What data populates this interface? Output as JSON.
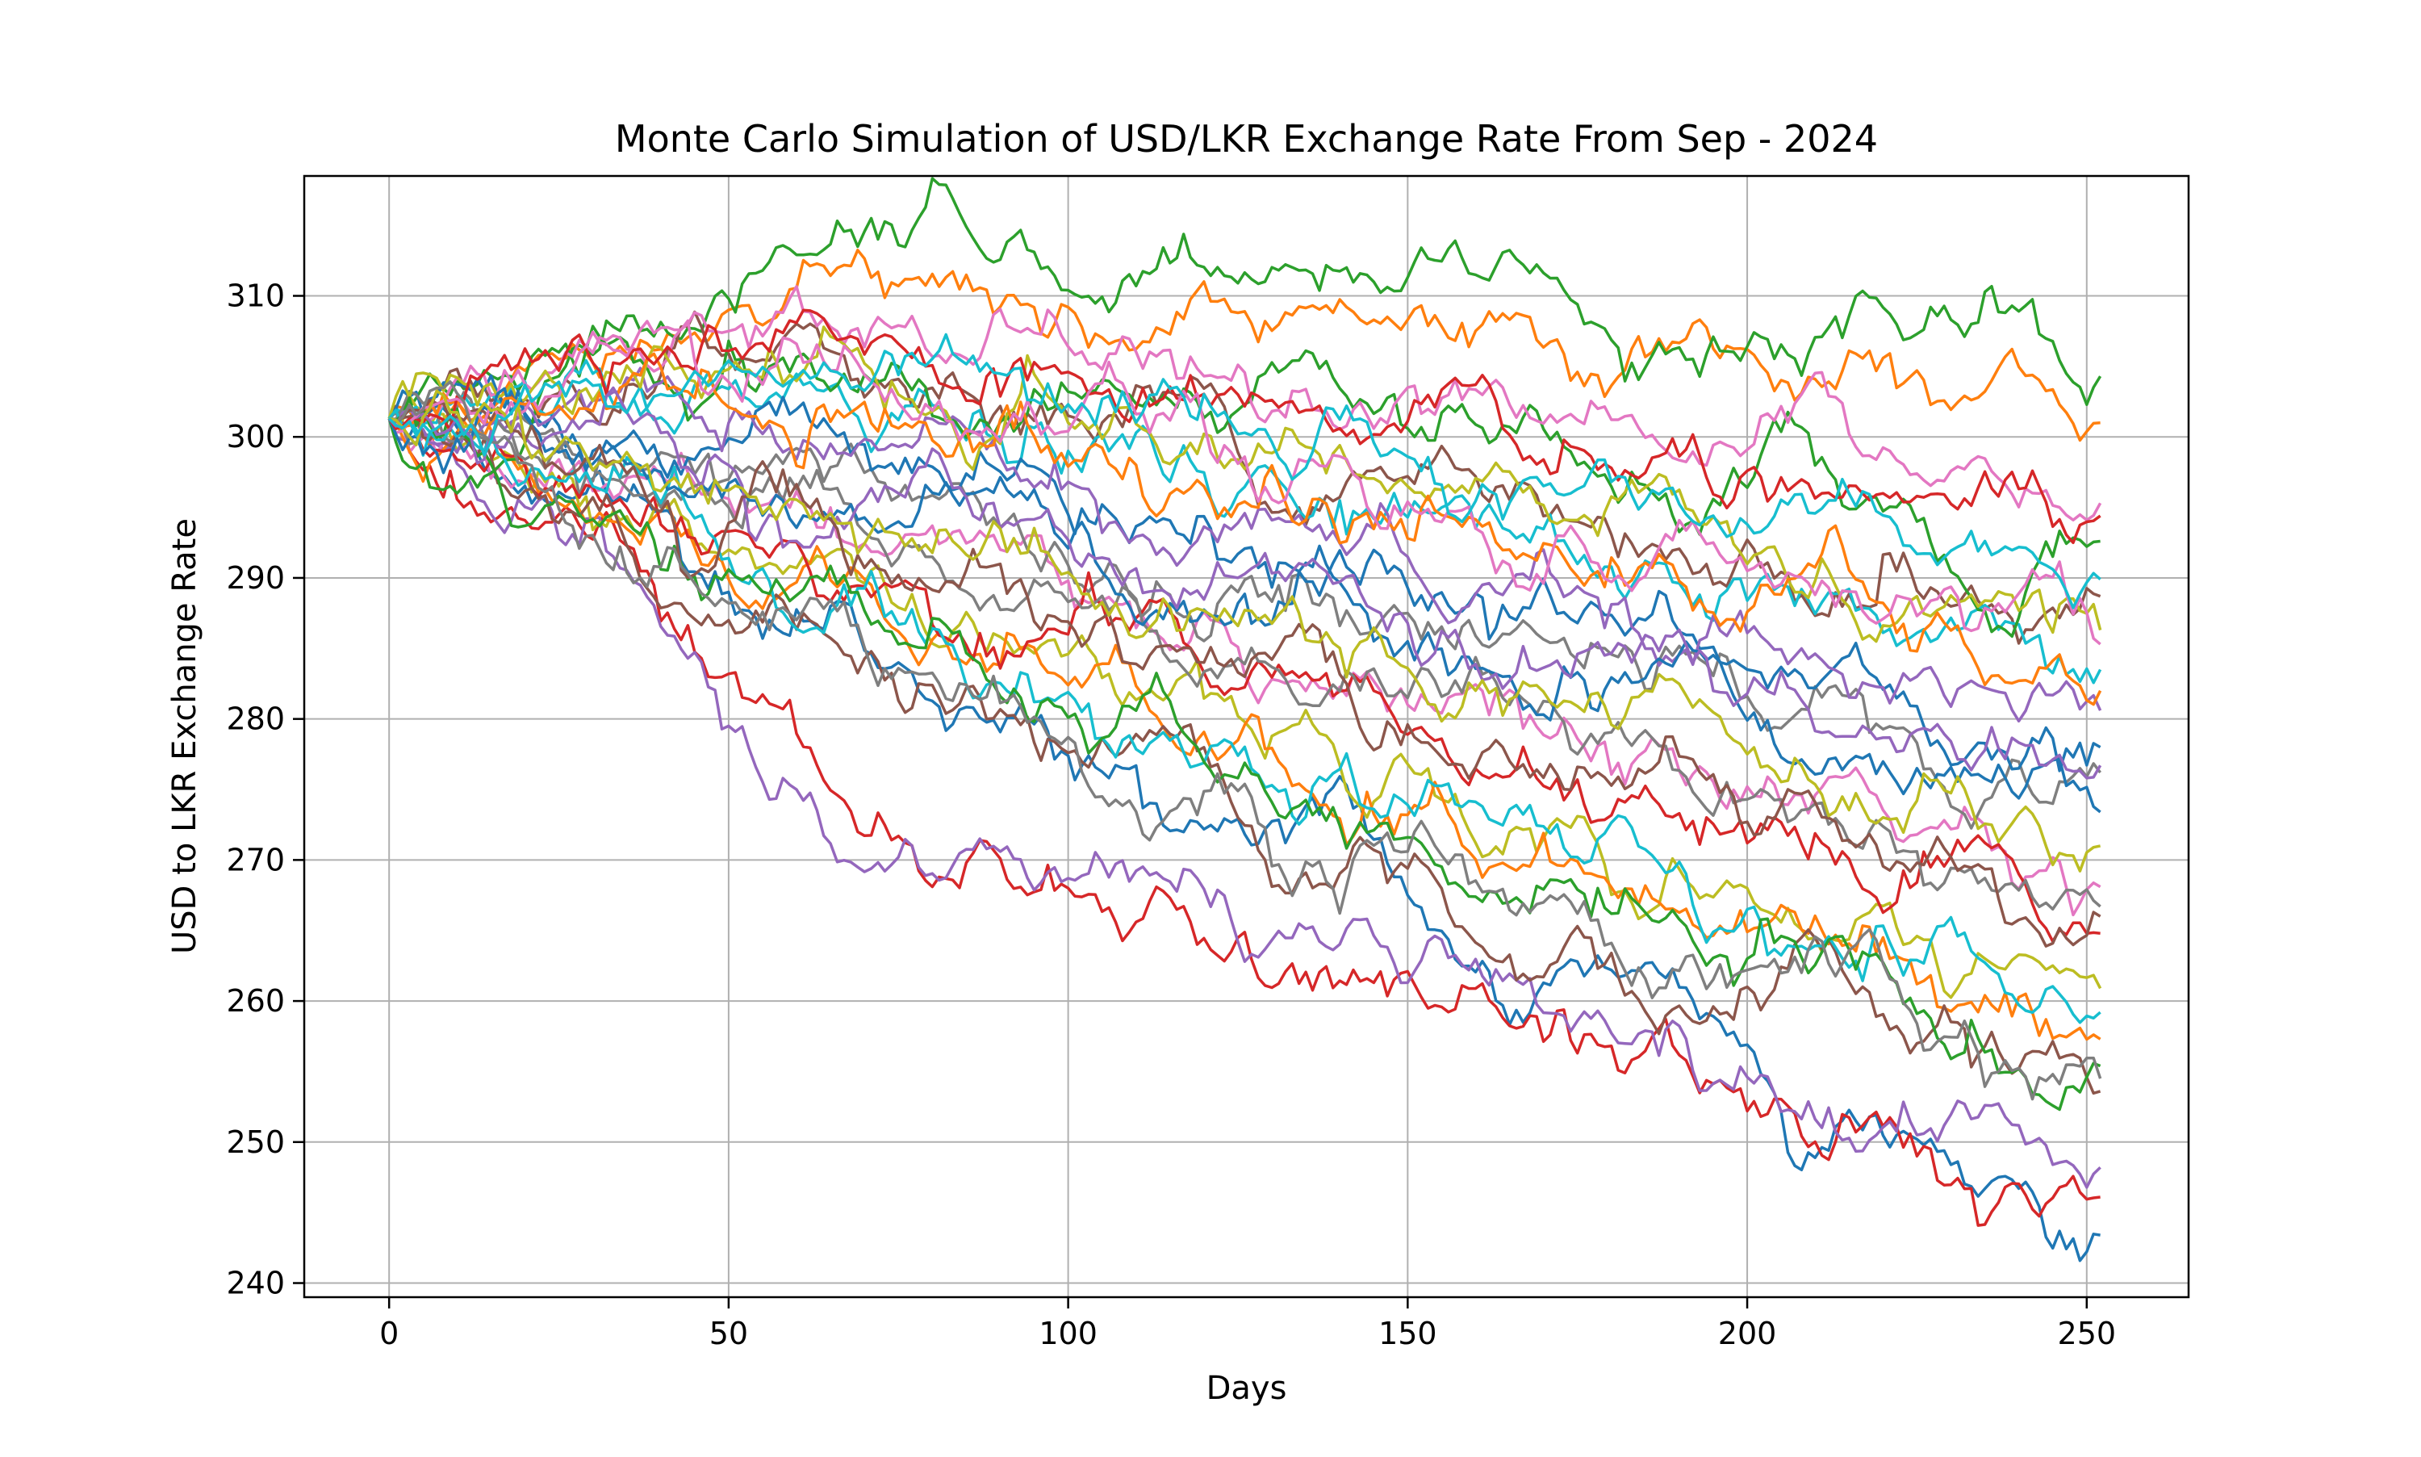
{
  "chart_data": {
    "type": "line",
    "title": "Monte Carlo Simulation of USD/LKR Exchange Rate From Sep - 2024",
    "xlabel": "Days",
    "ylabel": "USD to LKR Exchange Rate",
    "xlim": [
      -12.5,
      265
    ],
    "ylim": [
      239,
      318.5
    ],
    "xticks": [
      0,
      50,
      100,
      150,
      200,
      250
    ],
    "yticks": [
      240,
      250,
      260,
      270,
      280,
      290,
      300,
      310
    ],
    "grid": true,
    "legend": "none",
    "start_value": 301.3,
    "num_days": 252,
    "colors": [
      "#1f77b4",
      "#ff7f0e",
      "#2ca02c",
      "#d62728",
      "#9467bd",
      "#8c564b",
      "#e377c2",
      "#7f7f7f",
      "#bcbd22",
      "#17becf"
    ],
    "series_note": "",
    "series": [
      {
        "x": [
          0,
          25,
          50,
          75,
          100,
          125,
          150,
          175,
          200,
          225,
          252
        ],
        "y": [
          301.3,
          296.1,
          289.0,
          284.0,
          277.4,
          272.9,
          267.5,
          262.8,
          256.9,
          250.2,
          243.4
        ]
      },
      {
        "x": [
          0,
          25,
          50,
          75,
          100,
          125,
          150,
          175,
          200,
          225,
          252
        ],
        "y": [
          301.3,
          305.5,
          309.0,
          310.7,
          309.2,
          308.8,
          308.3,
          304.6,
          306.2,
          304.7,
          301.0
        ]
      },
      {
        "x": [
          0,
          25,
          50,
          75,
          100,
          125,
          150,
          175,
          200,
          225,
          252
        ],
        "y": [
          301.3,
          306.0,
          309.8,
          313.6,
          310.4,
          310.9,
          311.3,
          309.4,
          306.4,
          307.3,
          304.3
        ]
      },
      {
        "x": [
          0,
          25,
          50,
          75,
          100,
          125,
          150,
          175,
          200,
          225,
          252
        ],
        "y": [
          301.3,
          294.5,
          283.2,
          271.7,
          268.0,
          264.5,
          262.1,
          256.3,
          252.2,
          249.0,
          246.1
        ]
      },
      {
        "x": [
          0,
          25,
          50,
          75,
          100,
          125,
          150,
          175,
          200,
          225,
          252
        ],
        "y": [
          301.3,
          292.8,
          279.5,
          270.2,
          268.7,
          264.2,
          261.3,
          258.6,
          254.6,
          250.5,
          248.2
        ]
      },
      {
        "x": [
          0,
          25,
          50,
          75,
          100,
          125,
          150,
          175,
          200,
          225,
          252
        ],
        "y": [
          301.3,
          303.1,
          305.9,
          304.1,
          301.5,
          298.9,
          297.2,
          294.0,
          292.7,
          289.1,
          288.7
        ]
      },
      {
        "x": [
          0,
          25,
          50,
          75,
          100,
          125,
          150,
          175,
          200,
          225,
          252
        ],
        "y": [
          301.3,
          298.4,
          295.6,
          292.3,
          289.8,
          285.1,
          281.0,
          278.6,
          275.2,
          271.8,
          268.1
        ]
      },
      {
        "x": [
          0,
          25,
          50,
          75,
          100,
          125,
          150,
          175,
          200,
          225,
          252
        ],
        "y": [
          301.3,
          299.7,
          297.0,
          295.8,
          290.9,
          289.0,
          287.5,
          284.2,
          281.6,
          278.3,
          276.2
        ]
      },
      {
        "x": [
          0,
          25,
          50,
          75,
          100,
          125,
          150,
          175,
          200,
          225,
          252
        ],
        "y": [
          301.3,
          296.5,
          292.0,
          287.9,
          284.6,
          280.2,
          276.8,
          273.1,
          268.0,
          264.6,
          260.9
        ]
      },
      {
        "x": [
          0,
          25,
          50,
          75,
          100,
          125,
          150,
          175,
          200,
          225,
          252
        ],
        "y": [
          301.3,
          302.6,
          303.4,
          301.2,
          299.0,
          296.0,
          294.3,
          291.0,
          288.4,
          286.1,
          283.5
        ]
      },
      {
        "x": [
          0,
          25,
          50,
          75,
          100,
          125,
          150,
          175,
          200,
          225,
          252
        ],
        "y": [
          301.3,
          300.8,
          299.9,
          297.4,
          294.5,
          291.7,
          289.3,
          286.8,
          283.5,
          280.9,
          278.0
        ]
      },
      {
        "x": [
          0,
          25,
          50,
          75,
          100,
          125,
          150,
          175,
          200,
          225,
          252
        ],
        "y": [
          301.3,
          295.3,
          289.9,
          286.2,
          282.4,
          278.5,
          273.2,
          269.9,
          264.9,
          261.2,
          257.3
        ]
      },
      {
        "x": [
          0,
          25,
          50,
          75,
          100,
          125,
          150,
          175,
          200,
          225,
          252
        ],
        "y": [
          301.3,
          304.3,
          306.8,
          305.0,
          303.2,
          301.9,
          300.6,
          298.0,
          296.4,
          294.0,
          292.6
        ]
      },
      {
        "x": [
          0,
          25,
          50,
          75,
          100,
          125,
          150,
          175,
          200,
          225,
          252
        ],
        "y": [
          301.3,
          297.2,
          293.3,
          289.5,
          286.0,
          282.1,
          278.9,
          275.7,
          271.2,
          268.4,
          264.8
        ]
      },
      {
        "x": [
          0,
          25,
          50,
          75,
          100,
          125,
          150,
          175,
          200,
          225,
          252
        ],
        "y": [
          301.3,
          301.9,
          301.0,
          299.3,
          296.8,
          293.9,
          291.5,
          289.4,
          286.1,
          283.0,
          280.6
        ]
      },
      {
        "x": [
          0,
          25,
          50,
          75,
          100,
          125,
          150,
          175,
          200,
          225,
          252
        ],
        "y": [
          301.3,
          293.9,
          287.0,
          281.3,
          277.6,
          273.0,
          269.4,
          265.3,
          261.0,
          257.0,
          253.6
        ]
      },
      {
        "x": [
          0,
          25,
          50,
          75,
          100,
          125,
          150,
          175,
          200,
          225,
          252
        ],
        "y": [
          301.3,
          305.0,
          307.5,
          307.9,
          306.4,
          305.1,
          303.5,
          301.2,
          299.1,
          297.4,
          295.3
        ]
      },
      {
        "x": [
          0,
          25,
          50,
          75,
          100,
          125,
          150,
          175,
          200,
          225,
          252
        ],
        "y": [
          301.3,
          299.1,
          295.0,
          291.4,
          288.3,
          284.3,
          281.5,
          277.5,
          274.3,
          270.6,
          266.7
        ]
      },
      {
        "x": [
          0,
          25,
          50,
          75,
          100,
          125,
          150,
          175,
          200,
          225,
          252
        ],
        "y": [
          301.3,
          303.6,
          304.8,
          303.0,
          301.0,
          298.4,
          296.5,
          294.1,
          291.0,
          288.7,
          286.3
        ]
      },
      {
        "x": [
          0,
          25,
          50,
          75,
          100,
          125,
          150,
          175,
          200,
          225,
          252
        ],
        "y": [
          301.3,
          296.9,
          291.4,
          286.7,
          281.9,
          277.4,
          273.9,
          270.2,
          266.5,
          262.9,
          259.2
        ]
      },
      {
        "x": [
          0,
          25,
          50,
          75,
          100,
          125,
          150,
          175,
          200,
          225,
          252
        ],
        "y": [
          301.3,
          298.9,
          296.7,
          294.0,
          292.1,
          288.2,
          285.5,
          283.3,
          279.9,
          276.5,
          273.4
        ]
      },
      {
        "x": [
          0,
          25,
          50,
          75,
          100,
          125,
          150,
          175,
          200,
          225,
          252
        ],
        "y": [
          301.3,
          302.2,
          302.1,
          300.6,
          297.9,
          295.2,
          292.8,
          290.1,
          287.6,
          284.8,
          282.0
        ]
      },
      {
        "x": [
          0,
          25,
          50,
          75,
          100,
          125,
          150,
          175,
          200,
          225,
          252
        ],
        "y": [
          301.3,
          295.8,
          290.6,
          285.3,
          280.1,
          275.8,
          271.6,
          267.9,
          263.0,
          259.1,
          255.4
        ]
      },
      {
        "x": [
          0,
          25,
          50,
          75,
          100,
          125,
          150,
          175,
          200,
          225,
          252
        ],
        "y": [
          301.3,
          304.7,
          306.1,
          306.6,
          304.6,
          303.0,
          301.1,
          299.2,
          297.6,
          295.8,
          294.4
        ]
      },
      {
        "x": [
          0,
          25,
          50,
          75,
          100,
          125,
          150,
          175,
          200,
          225,
          252
        ],
        "y": [
          301.3,
          300.3,
          298.0,
          296.0,
          292.7,
          290.0,
          286.8,
          284.6,
          281.8,
          279.2,
          276.7
        ]
      },
      {
        "x": [
          0,
          25,
          50,
          75,
          100,
          125,
          150,
          175,
          200,
          225,
          252
        ],
        "y": [
          301.3,
          297.8,
          293.9,
          290.2,
          286.9,
          283.3,
          279.6,
          276.6,
          272.7,
          269.8,
          266.0
        ]
      },
      {
        "x": [
          0,
          25,
          50,
          75,
          100,
          125,
          150,
          175,
          200,
          225,
          252
        ],
        "y": [
          301.3,
          302.9,
          303.9,
          302.4,
          300.4,
          298.1,
          295.4,
          293.0,
          290.5,
          287.3,
          285.3
        ]
      },
      {
        "x": [
          0,
          25,
          50,
          75,
          100,
          125,
          150,
          175,
          200,
          225,
          252
        ],
        "y": [
          301.3,
          294.9,
          288.2,
          283.6,
          278.7,
          274.9,
          270.6,
          266.2,
          262.2,
          258.4,
          254.5
        ]
      },
      {
        "x": [
          0,
          25,
          50,
          75,
          100,
          125,
          150,
          175,
          200,
          225,
          252
        ],
        "y": [
          301.3,
          299.4,
          296.2,
          293.1,
          290.4,
          286.6,
          283.6,
          280.9,
          277.5,
          274.2,
          271.0
        ]
      },
      {
        "x": [
          0,
          25,
          50,
          75,
          100,
          125,
          150,
          175,
          200,
          225,
          252
        ],
        "y": [
          301.3,
          303.9,
          305.4,
          304.4,
          302.3,
          300.2,
          298.6,
          296.3,
          293.8,
          291.7,
          289.9
        ]
      }
    ]
  }
}
